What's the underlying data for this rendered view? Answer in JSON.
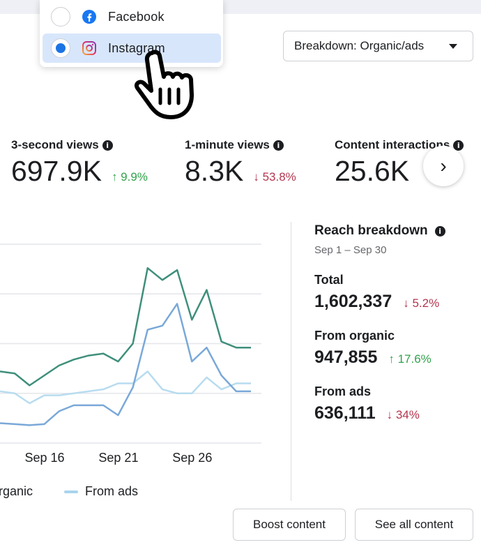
{
  "dropdown": {
    "items": [
      {
        "label": "Facebook",
        "icon": "facebook-icon",
        "selected": false
      },
      {
        "label": "Instagram",
        "icon": "instagram-icon",
        "selected": true
      }
    ]
  },
  "breakdown": {
    "label": "Breakdown: Organic/ads"
  },
  "metrics": [
    {
      "label": "3-second views",
      "value": "697.9K",
      "change": "↑ 9.9%",
      "direction": "up"
    },
    {
      "label": "1-minute views",
      "value": "8.3K",
      "change": "↓ 53.8%",
      "direction": "down"
    },
    {
      "label": "Content interactions",
      "value": "25.6K",
      "change": "",
      "direction": "up"
    }
  ],
  "reach": {
    "title": "Reach breakdown",
    "date_range": "Sep 1 – Sep 30",
    "total": {
      "label": "Total",
      "value": "1,602,337",
      "change": "↓ 5.2%"
    },
    "organic": {
      "label": "From organic",
      "value": "947,855",
      "change": "↑ 17.6%"
    },
    "ads": {
      "label": "From ads",
      "value": "636,111",
      "change": "↓ 34%"
    }
  },
  "chart_data": {
    "type": "line",
    "x_tick_labels": [
      "Sep 16",
      "Sep 21",
      "Sep 26"
    ],
    "x": [
      13,
      14,
      15,
      16,
      17,
      18,
      19,
      20,
      21,
      22,
      23,
      24,
      25,
      26,
      27,
      28,
      29,
      30
    ],
    "series": [
      {
        "name": "",
        "color": "#3f8f7b",
        "values": [
          3.6,
          3.5,
          2.9,
          3.4,
          3.9,
          4.2,
          4.4,
          4.5,
          4.1,
          5.0,
          8.8,
          8.2,
          8.7,
          6.2,
          7.7,
          5.1,
          4.8,
          4.8
        ]
      },
      {
        "name": "",
        "color": "#7aa8d8",
        "values": [
          1.0,
          0.95,
          0.9,
          0.95,
          1.6,
          1.9,
          1.9,
          1.9,
          1.4,
          2.8,
          5.7,
          5.9,
          7.0,
          4.1,
          4.8,
          3.4,
          2.6,
          2.6
        ]
      },
      {
        "name": "",
        "color": "#b8dcef",
        "values": [
          2.6,
          2.5,
          2.0,
          2.4,
          2.4,
          2.5,
          2.6,
          2.7,
          3.0,
          3.0,
          3.6,
          2.7,
          2.5,
          2.5,
          3.3,
          2.7,
          3.0,
          3.0
        ]
      }
    ],
    "legend": [
      "rganic",
      "From ads"
    ]
  },
  "buttons": {
    "boost": "Boost content",
    "see_all": "See all content"
  },
  "colors": {
    "accent": "#1b74e4",
    "up": "#31a24c",
    "down": "#b3364f"
  }
}
